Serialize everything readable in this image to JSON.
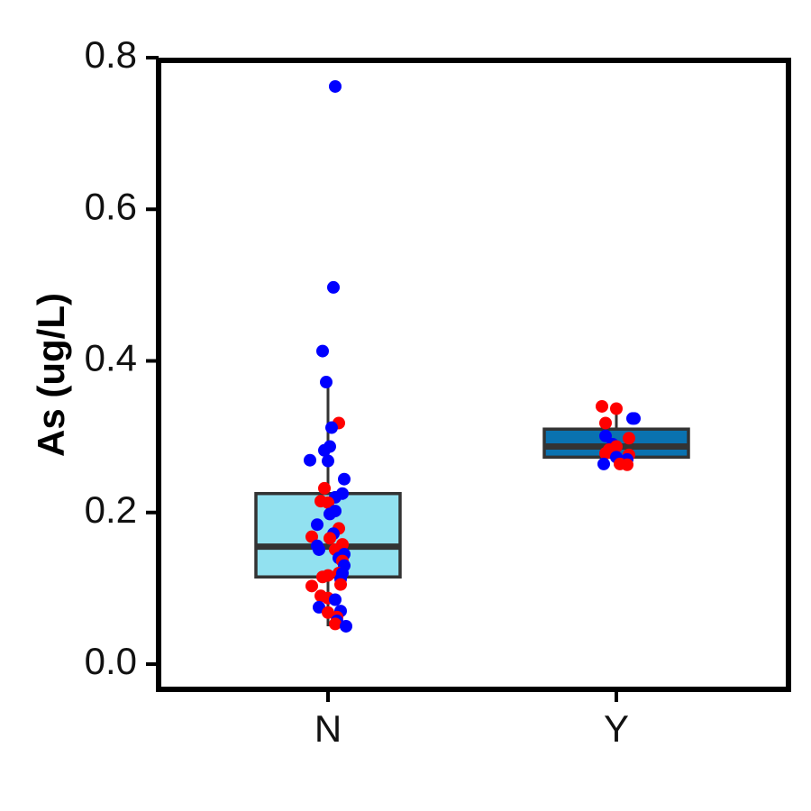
{
  "chart_data": {
    "type": "box",
    "xlabel": "",
    "ylabel": "As (ug/L)",
    "ylim": [
      -0.033,
      0.8
    ],
    "yticks": [
      0.0,
      0.2,
      0.4,
      0.6,
      0.8
    ],
    "ytick_labels": [
      "0.0",
      "0.2",
      "0.4",
      "0.6",
      "0.8"
    ],
    "categories": [
      "N",
      "Y"
    ],
    "grid": false,
    "legend": "none",
    "colors": {
      "box_N": "#92e1f0",
      "box_Y": "#0a72b0",
      "box_edge": "#333333",
      "point_blue": "#0000ff",
      "point_red": "#ff0000"
    },
    "boxes": [
      {
        "category": "N",
        "whisker_low": 0.05,
        "q1": 0.115,
        "median": 0.155,
        "q3": 0.225,
        "whisker_high": 0.365
      },
      {
        "category": "Y",
        "whisker_low": 0.27,
        "q1": 0.273,
        "median": 0.287,
        "q3": 0.31,
        "whisker_high": 0.33
      }
    ],
    "points": [
      {
        "category": "N",
        "dx": 0.04,
        "y": 0.762,
        "color": "blue"
      },
      {
        "category": "N",
        "dx": 0.03,
        "y": 0.497,
        "color": "blue"
      },
      {
        "category": "N",
        "dx": -0.03,
        "y": 0.413,
        "color": "blue"
      },
      {
        "category": "N",
        "dx": -0.01,
        "y": 0.372,
        "color": "blue"
      },
      {
        "category": "N",
        "dx": 0.06,
        "y": 0.318,
        "color": "red"
      },
      {
        "category": "N",
        "dx": 0.02,
        "y": 0.312,
        "color": "blue"
      },
      {
        "category": "N",
        "dx": 0.01,
        "y": 0.287,
        "color": "blue"
      },
      {
        "category": "N",
        "dx": -0.02,
        "y": 0.282,
        "color": "blue"
      },
      {
        "category": "N",
        "dx": -0.1,
        "y": 0.269,
        "color": "blue"
      },
      {
        "category": "N",
        "dx": 0.0,
        "y": 0.268,
        "color": "blue"
      },
      {
        "category": "N",
        "dx": 0.09,
        "y": 0.244,
        "color": "blue"
      },
      {
        "category": "N",
        "dx": -0.02,
        "y": 0.232,
        "color": "red"
      },
      {
        "category": "N",
        "dx": 0.08,
        "y": 0.225,
        "color": "blue"
      },
      {
        "category": "N",
        "dx": 0.04,
        "y": 0.22,
        "color": "blue"
      },
      {
        "category": "N",
        "dx": -0.04,
        "y": 0.215,
        "color": "red"
      },
      {
        "category": "N",
        "dx": 0.0,
        "y": 0.213,
        "color": "red"
      },
      {
        "category": "N",
        "dx": 0.04,
        "y": 0.202,
        "color": "blue"
      },
      {
        "category": "N",
        "dx": 0.01,
        "y": 0.198,
        "color": "blue"
      },
      {
        "category": "N",
        "dx": -0.06,
        "y": 0.184,
        "color": "blue"
      },
      {
        "category": "N",
        "dx": 0.06,
        "y": 0.179,
        "color": "red"
      },
      {
        "category": "N",
        "dx": 0.03,
        "y": 0.172,
        "color": "blue"
      },
      {
        "category": "N",
        "dx": -0.09,
        "y": 0.168,
        "color": "red"
      },
      {
        "category": "N",
        "dx": 0.01,
        "y": 0.166,
        "color": "red"
      },
      {
        "category": "N",
        "dx": 0.08,
        "y": 0.158,
        "color": "red"
      },
      {
        "category": "N",
        "dx": -0.06,
        "y": 0.156,
        "color": "blue"
      },
      {
        "category": "N",
        "dx": -0.05,
        "y": 0.151,
        "color": "blue"
      },
      {
        "category": "N",
        "dx": 0.04,
        "y": 0.151,
        "color": "red"
      },
      {
        "category": "N",
        "dx": 0.09,
        "y": 0.145,
        "color": "blue"
      },
      {
        "category": "N",
        "dx": 0.06,
        "y": 0.14,
        "color": "blue"
      },
      {
        "category": "N",
        "dx": 0.08,
        "y": 0.136,
        "color": "red"
      },
      {
        "category": "N",
        "dx": 0.09,
        "y": 0.13,
        "color": "blue"
      },
      {
        "category": "N",
        "dx": 0.06,
        "y": 0.12,
        "color": "red"
      },
      {
        "category": "N",
        "dx": 0.08,
        "y": 0.12,
        "color": "blue"
      },
      {
        "category": "N",
        "dx": 0.0,
        "y": 0.117,
        "color": "red"
      },
      {
        "category": "N",
        "dx": -0.03,
        "y": 0.115,
        "color": "red"
      },
      {
        "category": "N",
        "dx": 0.07,
        "y": 0.112,
        "color": "blue"
      },
      {
        "category": "N",
        "dx": 0.07,
        "y": 0.105,
        "color": "red"
      },
      {
        "category": "N",
        "dx": -0.09,
        "y": 0.103,
        "color": "red"
      },
      {
        "category": "N",
        "dx": -0.04,
        "y": 0.09,
        "color": "red"
      },
      {
        "category": "N",
        "dx": 0.0,
        "y": 0.087,
        "color": "red"
      },
      {
        "category": "N",
        "dx": 0.04,
        "y": 0.085,
        "color": "blue"
      },
      {
        "category": "N",
        "dx": -0.05,
        "y": 0.075,
        "color": "blue"
      },
      {
        "category": "N",
        "dx": 0.07,
        "y": 0.07,
        "color": "blue"
      },
      {
        "category": "N",
        "dx": 0.0,
        "y": 0.068,
        "color": "red"
      },
      {
        "category": "N",
        "dx": 0.05,
        "y": 0.062,
        "color": "red"
      },
      {
        "category": "N",
        "dx": 0.05,
        "y": 0.057,
        "color": "blue"
      },
      {
        "category": "N",
        "dx": 0.04,
        "y": 0.053,
        "color": "red"
      },
      {
        "category": "N",
        "dx": 0.1,
        "y": 0.05,
        "color": "blue"
      },
      {
        "category": "Y",
        "dx": -0.08,
        "y": 0.34,
        "color": "red"
      },
      {
        "category": "Y",
        "dx": 0.0,
        "y": 0.337,
        "color": "red"
      },
      {
        "category": "Y",
        "dx": 0.09,
        "y": 0.324,
        "color": "blue"
      },
      {
        "category": "Y",
        "dx": 0.1,
        "y": 0.324,
        "color": "blue"
      },
      {
        "category": "Y",
        "dx": -0.06,
        "y": 0.318,
        "color": "red"
      },
      {
        "category": "Y",
        "dx": -0.06,
        "y": 0.301,
        "color": "blue"
      },
      {
        "category": "Y",
        "dx": 0.07,
        "y": 0.298,
        "color": "red"
      },
      {
        "category": "Y",
        "dx": -0.02,
        "y": 0.29,
        "color": "blue"
      },
      {
        "category": "Y",
        "dx": 0.0,
        "y": 0.287,
        "color": "red"
      },
      {
        "category": "Y",
        "dx": -0.04,
        "y": 0.283,
        "color": "red"
      },
      {
        "category": "Y",
        "dx": -0.06,
        "y": 0.278,
        "color": "red"
      },
      {
        "category": "Y",
        "dx": 0.07,
        "y": 0.276,
        "color": "red"
      },
      {
        "category": "Y",
        "dx": 0.0,
        "y": 0.273,
        "color": "blue"
      },
      {
        "category": "Y",
        "dx": 0.06,
        "y": 0.27,
        "color": "blue"
      },
      {
        "category": "Y",
        "dx": -0.07,
        "y": 0.264,
        "color": "blue"
      },
      {
        "category": "Y",
        "dx": 0.02,
        "y": 0.264,
        "color": "red"
      },
      {
        "category": "Y",
        "dx": 0.06,
        "y": 0.263,
        "color": "red"
      }
    ]
  }
}
